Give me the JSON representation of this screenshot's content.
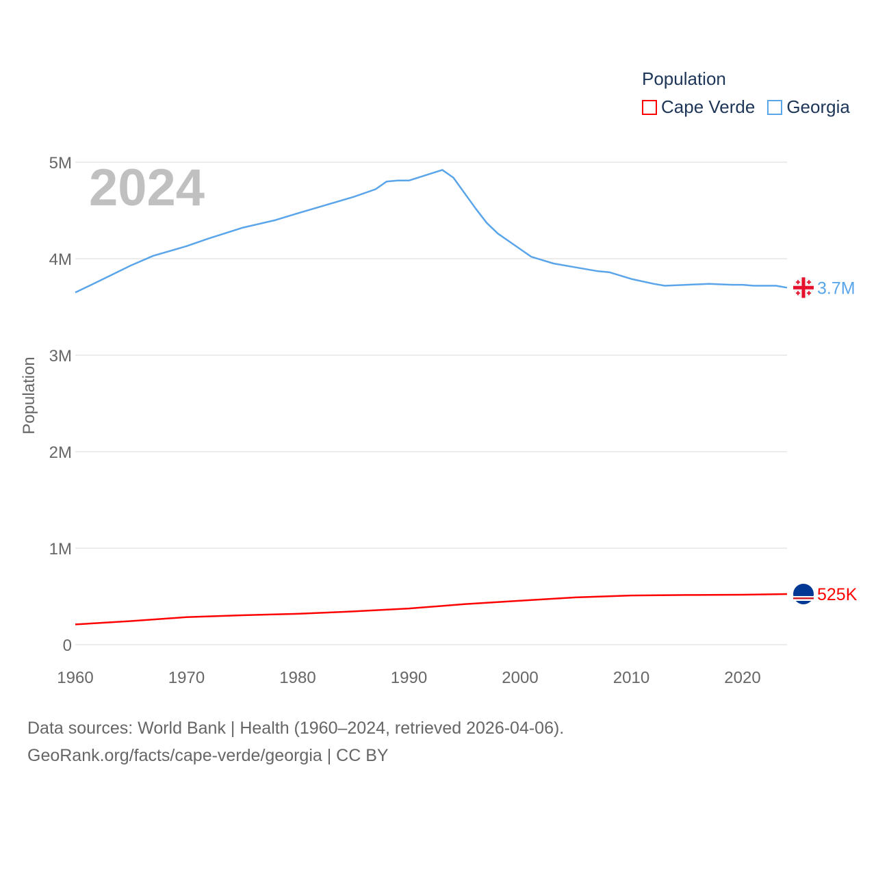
{
  "chart_data": {
    "type": "line",
    "title": "Population",
    "ylabel": "Population",
    "xlabel": "",
    "year_label": "2024",
    "xlim": [
      1960,
      2024
    ],
    "ylim": [
      0,
      5000000
    ],
    "x_ticks": [
      "1960",
      "1970",
      "1980",
      "1990",
      "2000",
      "2010",
      "2020"
    ],
    "y_ticks": [
      {
        "v": 0,
        "label": "0"
      },
      {
        "v": 1000000,
        "label": "1M"
      },
      {
        "v": 2000000,
        "label": "2M"
      },
      {
        "v": 3000000,
        "label": "3M"
      },
      {
        "v": 4000000,
        "label": "4M"
      },
      {
        "v": 5000000,
        "label": "5M"
      }
    ],
    "grid": true,
    "legend_position": "top-right",
    "series": [
      {
        "name": "Cape Verde",
        "color": "#ff0000",
        "end_label": "525K",
        "flag": "cape-verde-flag",
        "x": [
          1960,
          1965,
          1970,
          1975,
          1980,
          1985,
          1990,
          1995,
          2000,
          2005,
          2010,
          2015,
          2020,
          2024
        ],
        "y": [
          210000,
          245000,
          285000,
          305000,
          320000,
          345000,
          375000,
          420000,
          455000,
          490000,
          510000,
          515000,
          518000,
          525000
        ]
      },
      {
        "name": "Georgia",
        "color": "#5aa5ea",
        "end_label": "3.7M",
        "flag": "georgia-flag",
        "x": [
          1960,
          1962,
          1965,
          1967,
          1970,
          1972,
          1975,
          1978,
          1980,
          1985,
          1987,
          1988,
          1989,
          1990,
          1993,
          1994,
          1996,
          1997,
          1998,
          2000,
          2001,
          2003,
          2005,
          2007,
          2008,
          2010,
          2012,
          2013,
          2015,
          2017,
          2019,
          2020,
          2021,
          2023,
          2024
        ],
        "y": [
          3650000,
          3760000,
          3930000,
          4030000,
          4130000,
          4210000,
          4320000,
          4400000,
          4470000,
          4640000,
          4720000,
          4800000,
          4810000,
          4810000,
          4920000,
          4840000,
          4520000,
          4370000,
          4260000,
          4100000,
          4020000,
          3950000,
          3910000,
          3870000,
          3860000,
          3790000,
          3740000,
          3720000,
          3730000,
          3740000,
          3730000,
          3730000,
          3720000,
          3720000,
          3700000
        ]
      }
    ]
  },
  "legend": {
    "title": "Population",
    "items": [
      "Cape Verde",
      "Georgia"
    ]
  },
  "source": {
    "line1": "Data sources: World Bank | Health (1960–2024, retrieved 2026-04-06).",
    "line2": "GeoRank.org/facts/cape-verde/georgia | CC BY"
  }
}
